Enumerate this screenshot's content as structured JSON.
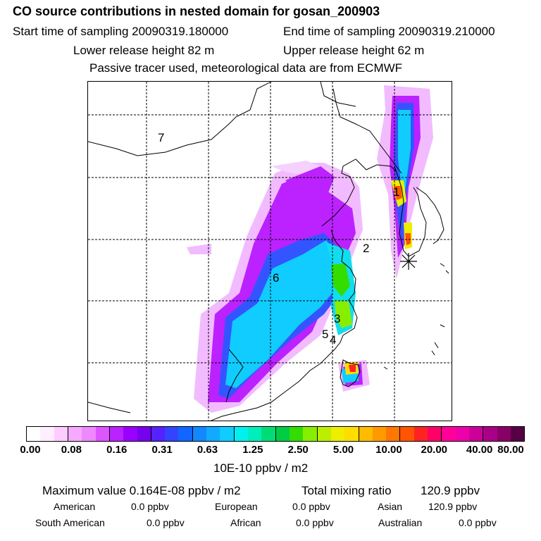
{
  "header": {
    "title": "CO  source contributions in nested domain for gosan_200903",
    "start_time": "Start time of sampling 20090319.180000",
    "end_time": "End time of sampling 20090319.210000",
    "lower_height": "Lower release height   82 m",
    "upper_height": "Upper release height   62 m",
    "tracer_note": "Passive tracer used, meteorological data are from ECMWF"
  },
  "map": {
    "region_labels": [
      "7",
      "2",
      "6",
      "3",
      "5",
      "4",
      "1"
    ],
    "station_marker": "station-asterisk"
  },
  "colorbar": {
    "colors": [
      "#ffffff",
      "#ffeeff",
      "#ffccff",
      "#f5aaff",
      "#ee88ff",
      "#dd55ff",
      "#bb22ff",
      "#9900ff",
      "#7700ee",
      "#5522ff",
      "#3344ff",
      "#1166ff",
      "#1188ff",
      "#11aaff",
      "#11ccff",
      "#00f0f0",
      "#00eebb",
      "#00dd77",
      "#00cc44",
      "#33dd00",
      "#88ee00",
      "#bbee00",
      "#eeee00",
      "#ffdd00",
      "#ffbb00",
      "#ff9900",
      "#ff7700",
      "#ff5500",
      "#ff2222",
      "#ff0066",
      "#ff0099",
      "#ee00aa",
      "#cc0099",
      "#aa0088",
      "#880066",
      "#550044"
    ],
    "tick_labels": [
      "0.00",
      "0.08",
      "0.16",
      "0.31",
      "0.63",
      "1.25",
      "2.50",
      "5.00",
      "10.00",
      "20.00",
      "40.00",
      "80.00"
    ],
    "units": "10E-10 ppbv / m2"
  },
  "stats": {
    "max_label": "Maximum value  0.164E-08 ppbv / m2",
    "total_label": "Total mixing ratio",
    "total_value": "120.9 ppbv",
    "regions": [
      {
        "name": "American",
        "value": "0.0 ppbv"
      },
      {
        "name": "European",
        "value": "0.0 ppbv"
      },
      {
        "name": "Asian",
        "value": "120.9 ppbv"
      },
      {
        "name": "South American",
        "value": "0.0 ppbv"
      },
      {
        "name": "African",
        "value": "0.0 ppbv"
      },
      {
        "name": "Australian",
        "value": "0.0 ppbv"
      }
    ]
  }
}
